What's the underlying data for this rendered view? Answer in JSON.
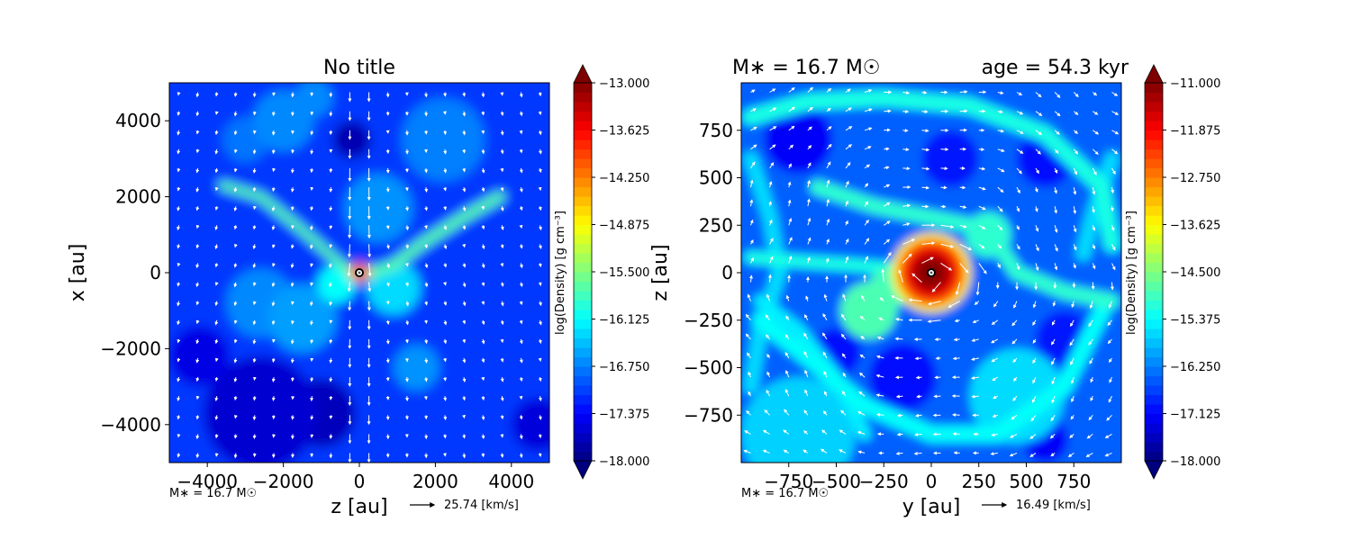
{
  "colors": {
    "jet": [
      "#00007f",
      "#0000ff",
      "#007fff",
      "#00ffff",
      "#7fff7f",
      "#ffff00",
      "#ff7f00",
      "#ff0000",
      "#7f0000"
    ],
    "arrow": "#ffffff",
    "star_outer": "#000000",
    "star_inner": "#ffffff"
  },
  "chart_data": [
    {
      "type": "heatmap",
      "title": "No title",
      "xlabel": "z [au]",
      "ylabel": "x [au]",
      "xlim": [
        -5000,
        5000
      ],
      "ylim": [
        -5000,
        5000
      ],
      "xticks": [
        -4000,
        -2000,
        0,
        2000,
        4000
      ],
      "yticks": [
        -4000,
        -2000,
        0,
        2000,
        4000
      ],
      "xtick_labels": [
        "−4000",
        "−2000",
        "0",
        "2000",
        "4000"
      ],
      "ytick_labels": [
        "−4000",
        "−2000",
        "0",
        "2000",
        "4000"
      ],
      "colorbar": {
        "label": "log(Density) [g cm⁻³]",
        "range": [
          -18.0,
          -13.0
        ],
        "ticks": [
          "−13.000",
          "−13.625",
          "−14.250",
          "−14.875",
          "−15.500",
          "−16.125",
          "−16.750",
          "−17.375",
          "−18.000"
        ]
      },
      "mass_label": "M∗ = 16.7 M☉",
      "velocity_key": "25.74 [km/s]",
      "background_level": 0.18,
      "features": [
        {
          "kind": "band",
          "points": [
            [
              -3600,
              2300
            ],
            [
              -2600,
              2000
            ],
            [
              -1600,
              1200
            ],
            [
              -800,
              500
            ],
            [
              -300,
              50
            ]
          ],
          "width": 230,
          "level": 0.46
        },
        {
          "kind": "band",
          "points": [
            [
              3700,
              2000
            ],
            [
              2800,
              1500
            ],
            [
              1700,
              800
            ],
            [
              900,
              200
            ],
            [
              300,
              0
            ]
          ],
          "width": 280,
          "level": 0.46
        },
        {
          "kind": "blob",
          "x": 0,
          "y": 0,
          "r": 260,
          "level": 0.8
        },
        {
          "kind": "blob",
          "x": 150,
          "y": 0,
          "r": 120,
          "level": 0.95
        },
        {
          "kind": "blob",
          "x": -600,
          "y": -300,
          "r": 500,
          "level": 0.38
        },
        {
          "kind": "blob",
          "x": 900,
          "y": -400,
          "r": 700,
          "level": 0.34
        },
        {
          "kind": "blob",
          "x": -1500,
          "y": -1200,
          "r": 900,
          "level": 0.28
        },
        {
          "kind": "blob",
          "x": 1500,
          "y": -2500,
          "r": 600,
          "level": 0.27
        },
        {
          "kind": "blob",
          "x": -2600,
          "y": -800,
          "r": 900,
          "level": 0.26
        },
        {
          "kind": "blob",
          "x": 500,
          "y": 1700,
          "r": 900,
          "level": 0.27
        },
        {
          "kind": "blob",
          "x": -2000,
          "y": 4000,
          "r": 800,
          "level": 0.26
        },
        {
          "kind": "blob",
          "x": -3000,
          "y": 3500,
          "r": 600,
          "level": 0.24
        },
        {
          "kind": "blob",
          "x": 2200,
          "y": 3500,
          "r": 1100,
          "level": 0.25
        },
        {
          "kind": "blob",
          "x": -1200,
          "y": 4600,
          "r": 500,
          "level": 0.26
        },
        {
          "kind": "dark",
          "x": -2600,
          "y": -3700,
          "r": 1500,
          "level": 0.08
        },
        {
          "kind": "dark",
          "x": -1000,
          "y": -3700,
          "r": 900,
          "level": 0.06
        },
        {
          "kind": "dark",
          "x": -4200,
          "y": -2200,
          "r": 800,
          "level": 0.1
        },
        {
          "kind": "dark",
          "x": 4700,
          "y": -4000,
          "r": 700,
          "level": 0.09
        },
        {
          "kind": "dark",
          "x": -200,
          "y": 3500,
          "r": 500,
          "level": 0.05
        }
      ]
    },
    {
      "type": "heatmap",
      "title_left": "M∗ = 16.7 M☉",
      "title_right": "age = 54.3 kyr",
      "xlabel": "y [au]",
      "ylabel": "z [au]",
      "xlim": [
        -1000,
        1000
      ],
      "ylim": [
        -1000,
        1000
      ],
      "xticks": [
        -750,
        -500,
        -250,
        0,
        250,
        500,
        750
      ],
      "yticks": [
        -750,
        -500,
        -250,
        0,
        250,
        500,
        750
      ],
      "xtick_labels": [
        "−750",
        "−500",
        "−250",
        "0",
        "250",
        "500",
        "750"
      ],
      "ytick_labels": [
        "−750",
        "−500",
        "−250",
        "0",
        "250",
        "500",
        "750"
      ],
      "colorbar": {
        "label": "log(Density) [g cm⁻³]",
        "range": [
          -18.0,
          -11.0
        ],
        "ticks": [
          "−11.000",
          "−11.875",
          "−12.750",
          "−13.625",
          "−14.500",
          "−15.375",
          "−16.250",
          "−17.125",
          "−18.000"
        ]
      },
      "mass_label": "M∗ = 16.7 M☉",
      "velocity_key": "16.49 [km/s]",
      "background_level": 0.22,
      "features": [
        {
          "kind": "blob",
          "x": 0,
          "y": 0,
          "r": 210,
          "level": 0.97
        },
        {
          "kind": "band",
          "points": [
            [
              -950,
              820
            ],
            [
              -650,
              900
            ],
            [
              -250,
              920
            ],
            [
              200,
              880
            ],
            [
              600,
              730
            ],
            [
              900,
              450
            ],
            [
              950,
              150
            ]
          ],
          "width": 90,
          "level": 0.4
        },
        {
          "kind": "band",
          "points": [
            [
              900,
              -200
            ],
            [
              700,
              -600
            ],
            [
              350,
              -850
            ],
            [
              0,
              -850
            ],
            [
              -350,
              -700
            ],
            [
              -650,
              -450
            ],
            [
              -900,
              -250
            ]
          ],
          "width": 90,
          "level": 0.38
        },
        {
          "kind": "band",
          "points": [
            [
              -600,
              450
            ],
            [
              -300,
              350
            ],
            [
              -50,
              300
            ],
            [
              200,
              250
            ],
            [
              350,
              150
            ],
            [
              450,
              0
            ],
            [
              700,
              -100
            ],
            [
              950,
              -150
            ]
          ],
          "width": 80,
          "level": 0.42
        },
        {
          "kind": "band",
          "points": [
            [
              -950,
              80
            ],
            [
              -700,
              60
            ],
            [
              -400,
              40
            ],
            [
              -200,
              20
            ]
          ],
          "width": 70,
          "level": 0.4
        },
        {
          "kind": "band",
          "points": [
            [
              -900,
              -150
            ],
            [
              -700,
              -300
            ],
            [
              -500,
              -550
            ],
            [
              -350,
              -850
            ]
          ],
          "width": 70,
          "level": 0.36
        },
        {
          "kind": "band",
          "points": [
            [
              -950,
              600
            ],
            [
              -850,
              300
            ],
            [
              -800,
              0
            ],
            [
              -900,
              -300
            ],
            [
              -950,
              -600
            ]
          ],
          "width": 80,
          "level": 0.34
        },
        {
          "kind": "band",
          "points": [
            [
              950,
              600
            ],
            [
              850,
              300
            ],
            [
              800,
              100
            ]
          ],
          "width": 80,
          "level": 0.34
        },
        {
          "kind": "blob",
          "x": -330,
          "y": -200,
          "r": 150,
          "level": 0.45
        },
        {
          "kind": "blob",
          "x": -220,
          "y": -80,
          "r": 110,
          "level": 0.44
        },
        {
          "kind": "blob",
          "x": 300,
          "y": 200,
          "r": 120,
          "level": 0.42
        },
        {
          "kind": "blob",
          "x": -700,
          "y": -850,
          "r": 300,
          "level": 0.33
        },
        {
          "kind": "blob",
          "x": 450,
          "y": -650,
          "r": 250,
          "level": 0.34
        },
        {
          "kind": "dark",
          "x": -700,
          "y": 700,
          "r": 180,
          "level": 0.12
        },
        {
          "kind": "dark",
          "x": -500,
          "y": -420,
          "r": 130,
          "level": 0.14
        },
        {
          "kind": "dark",
          "x": -150,
          "y": -550,
          "r": 180,
          "level": 0.14
        },
        {
          "kind": "dark",
          "x": 600,
          "y": 600,
          "r": 150,
          "level": 0.14
        },
        {
          "kind": "dark",
          "x": 700,
          "y": -350,
          "r": 150,
          "level": 0.15
        },
        {
          "kind": "dark",
          "x": 600,
          "y": -880,
          "r": 120,
          "level": 0.12
        },
        {
          "kind": "dark",
          "x": 100,
          "y": 600,
          "r": 150,
          "level": 0.15
        }
      ]
    }
  ]
}
